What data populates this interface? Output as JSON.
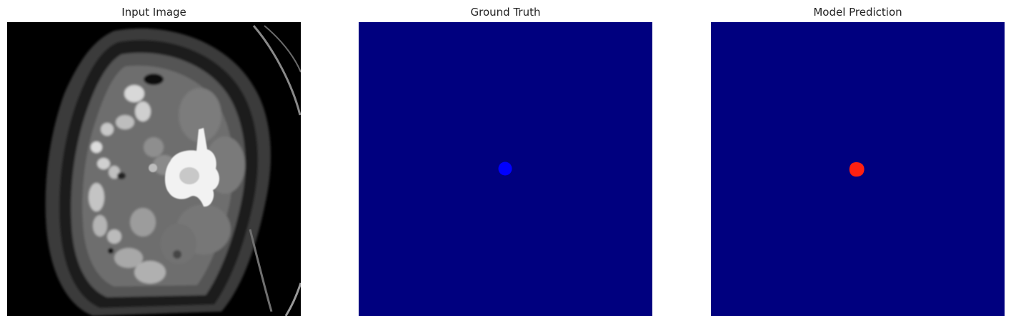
{
  "panels": [
    {
      "title": "Input Image",
      "content": "grayscale axial CT scan of abdomen"
    },
    {
      "title": "Ground Truth",
      "content": "segmentation mask with small blue lesion"
    },
    {
      "title": "Model Prediction",
      "content": "segmentation mask with small red lesion"
    }
  ],
  "colors": {
    "mask_background": "#00007f",
    "ground_truth_lesion": "#0000ff",
    "prediction_lesion": "#ff2010",
    "ct_background": "#000000"
  }
}
